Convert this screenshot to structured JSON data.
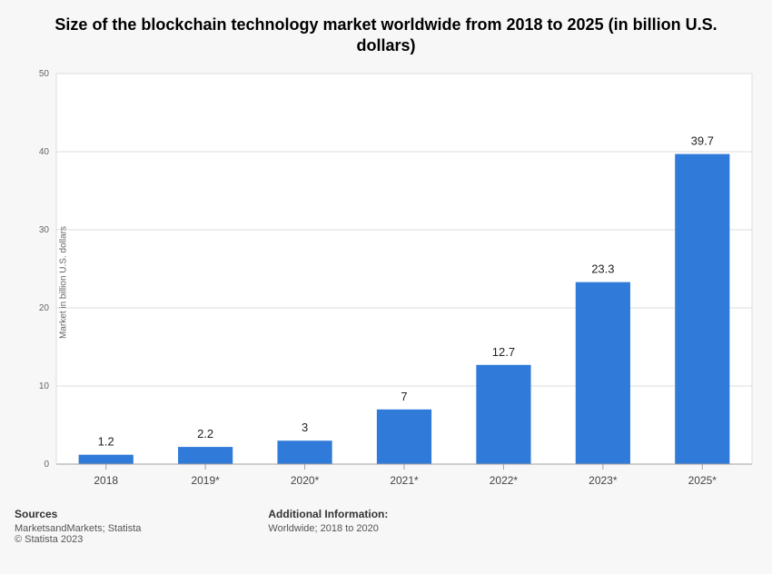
{
  "title": "Size of the blockchain technology market worldwide from 2018 to 2025 (in billion U.S. dollars)",
  "chart": {
    "type": "bar",
    "categories": [
      "2018",
      "2019*",
      "2020*",
      "2021*",
      "2022*",
      "2023*",
      "2025*"
    ],
    "values": [
      1.2,
      2.2,
      3,
      7,
      12.7,
      23.3,
      39.7
    ],
    "value_labels": [
      "1.2",
      "2.2",
      "3",
      "7",
      "12.7",
      "23.3",
      "39.7"
    ],
    "bar_color": "#307ad9",
    "ylabel": "Market in billion U.S. dollars",
    "ylim": [
      0,
      50
    ],
    "ytick_step": 10,
    "yticks": [
      "0",
      "10",
      "20",
      "30",
      "40",
      "50"
    ],
    "background_color": "#f7f7f7",
    "plot_bg": "#ffffff",
    "grid_color": "#dcdcdc",
    "axis_color": "#a0a0a0",
    "title_fontsize": 18,
    "ylabel_fontsize": 10,
    "tick_fontsize": 10,
    "xtick_fontsize": 12,
    "value_fontsize": 13,
    "bar_width_ratio": 0.55
  },
  "footer": {
    "sources_heading": "Sources",
    "sources_line1": "MarketsandMarkets; Statista",
    "sources_line2": "© Statista 2023",
    "info_heading": "Additional Information:",
    "info_line1": "Worldwide; 2018 to 2020"
  }
}
